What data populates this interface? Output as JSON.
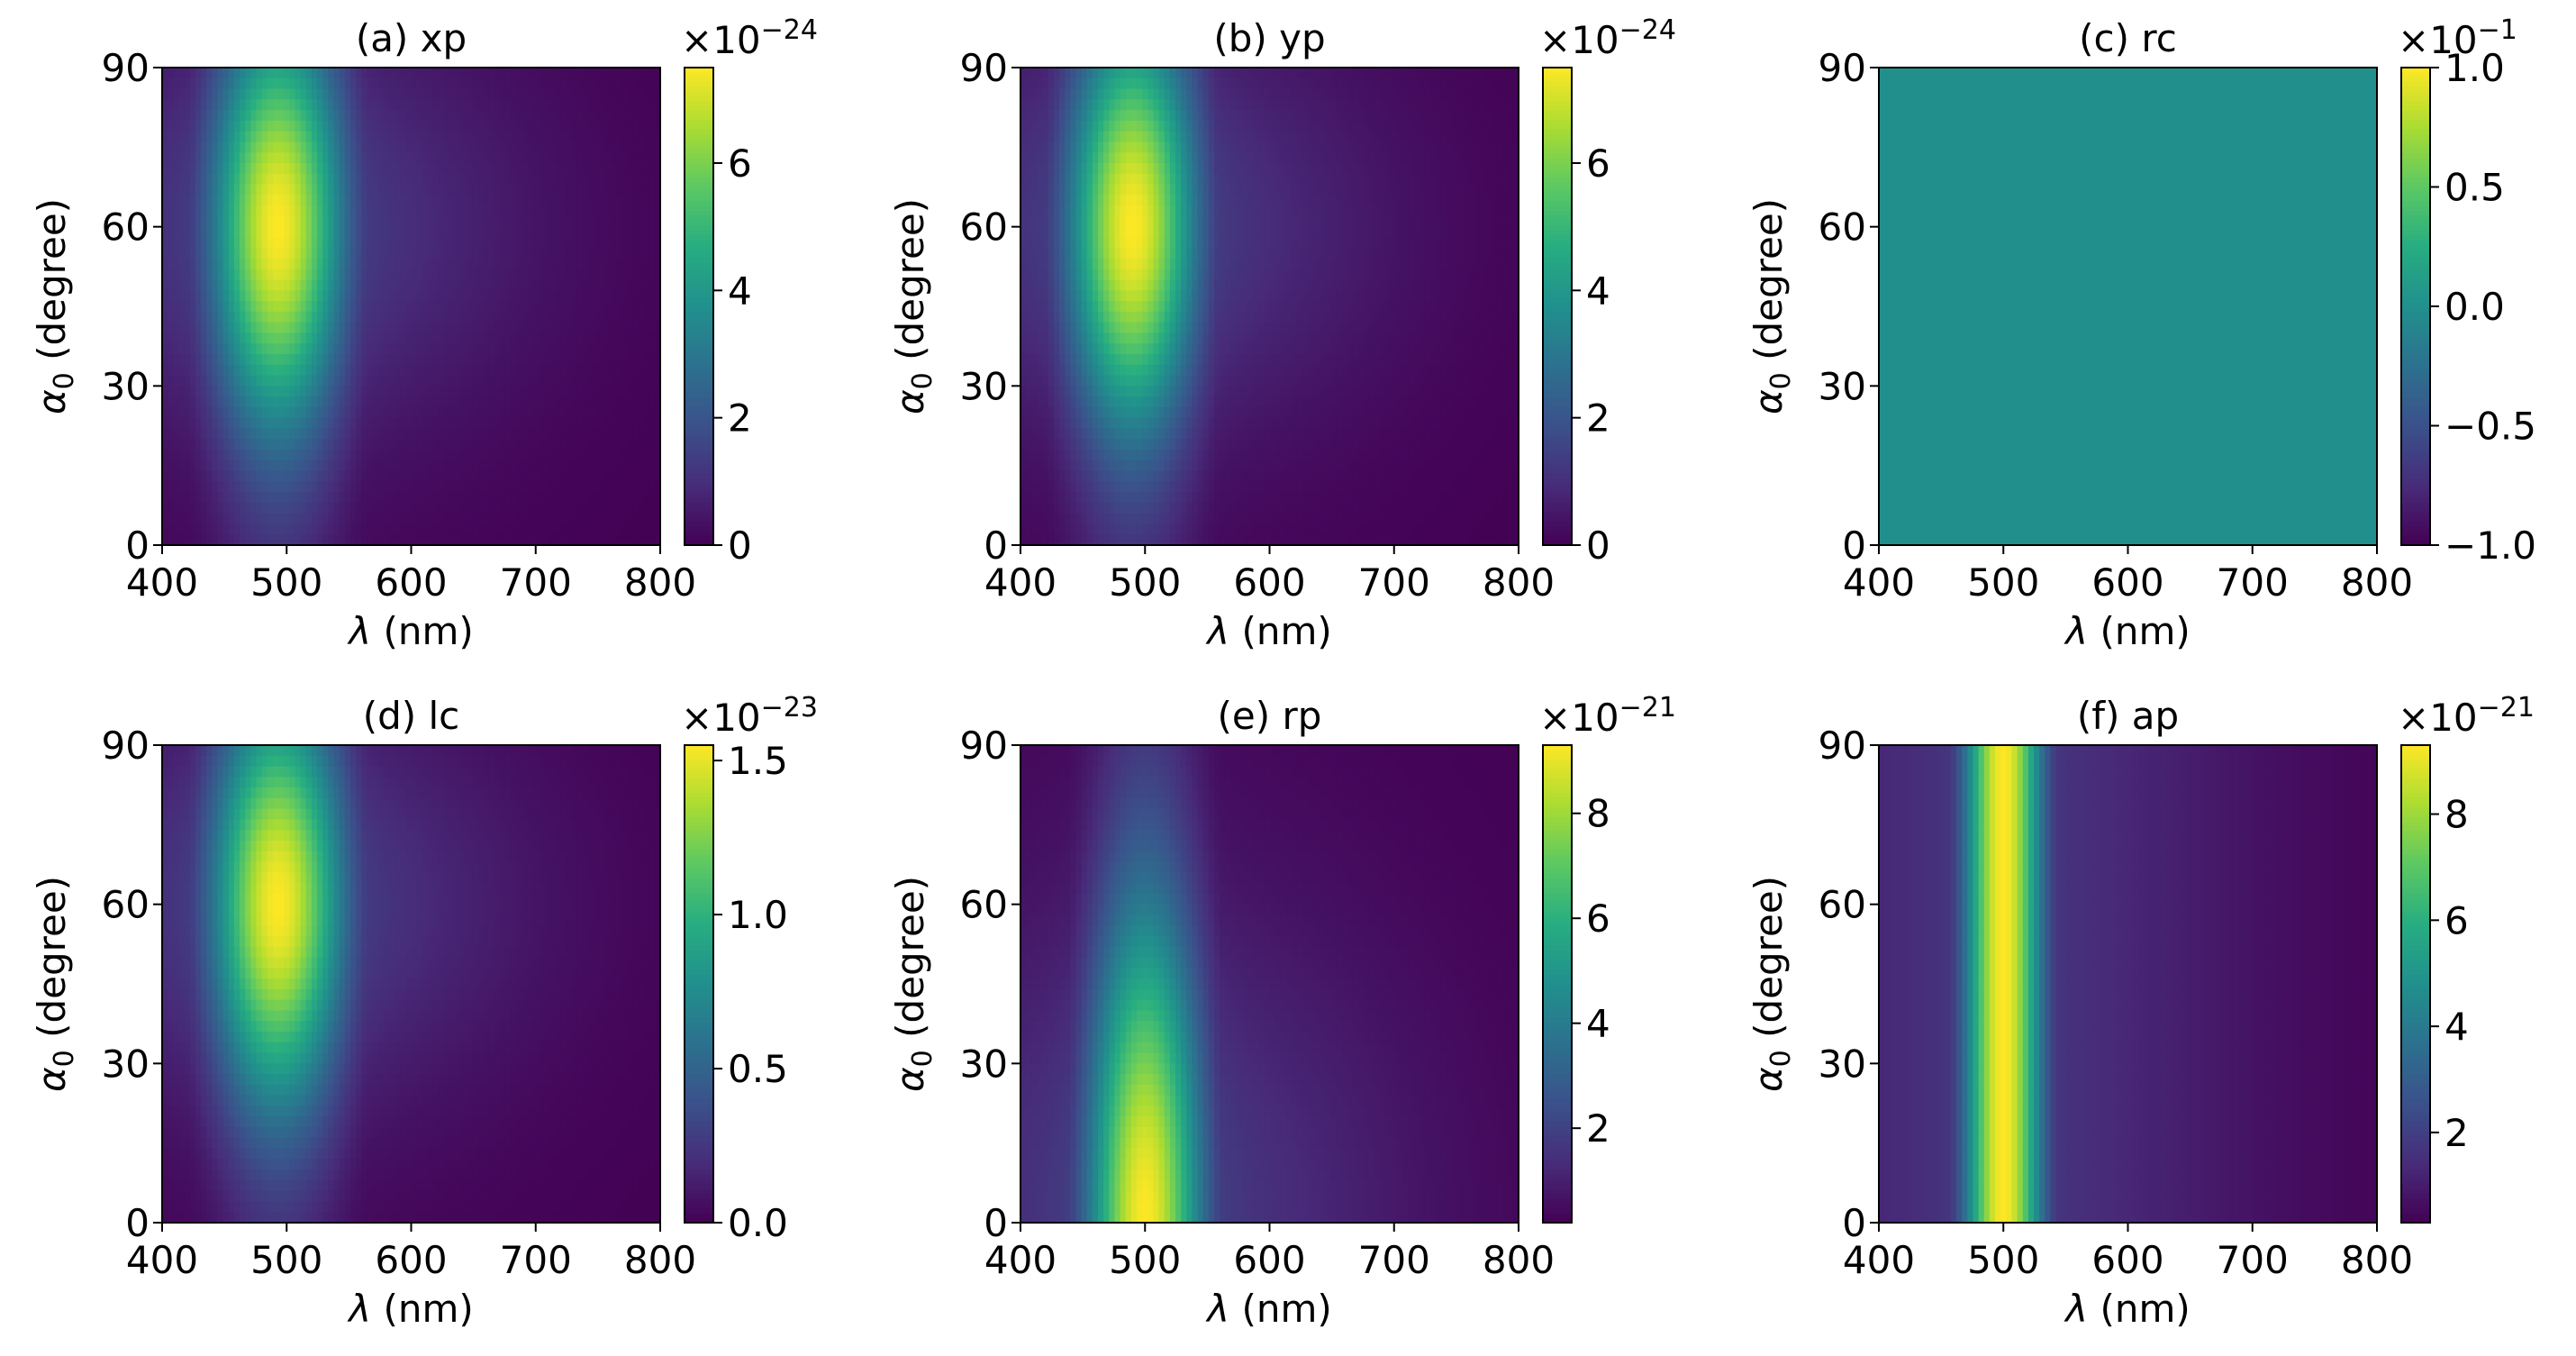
{
  "figure": {
    "rows": 2,
    "cols": 3
  },
  "colormap": "viridis",
  "chart_data": [
    {
      "type": "heatmap",
      "title": "(a) xp",
      "xlabel_symbol": "λ",
      "xlabel_unit": " (nm)",
      "ylabel_symbol": "α",
      "ylabel_sub": "0",
      "ylabel_unit": "  (degree)",
      "xlim": [
        400,
        800
      ],
      "ylim": [
        0,
        90
      ],
      "xticks": [
        400,
        500,
        600,
        700,
        800
      ],
      "yticks": [
        0,
        30,
        60,
        90
      ],
      "field": {
        "kind": "gauss2d",
        "peak_lambda": 493,
        "sigma_lambda": 38,
        "tail_sigma_lambda": 140,
        "tail_amp": 0.2,
        "peak_alpha": 60,
        "sigma_alpha": 27
      },
      "colorbar": {
        "range": [
          0,
          7.5
        ],
        "ticks": [
          0,
          2,
          4,
          6
        ],
        "tick_labels": [
          "0",
          "2",
          "4",
          "6"
        ],
        "offset_mantissa": "×10",
        "offset_exponent": "−24"
      }
    },
    {
      "type": "heatmap",
      "title": "(b) yp",
      "xlabel_symbol": "λ",
      "xlabel_unit": " (nm)",
      "ylabel_symbol": "α",
      "ylabel_sub": "0",
      "ylabel_unit": "  (degree)",
      "xlim": [
        400,
        800
      ],
      "ylim": [
        0,
        90
      ],
      "xticks": [
        400,
        500,
        600,
        700,
        800
      ],
      "yticks": [
        0,
        30,
        60,
        90
      ],
      "field": {
        "kind": "gauss2d",
        "peak_lambda": 490,
        "sigma_lambda": 37,
        "tail_sigma_lambda": 140,
        "tail_amp": 0.2,
        "peak_alpha": 60,
        "sigma_alpha": 27
      },
      "colorbar": {
        "range": [
          0,
          7.5
        ],
        "ticks": [
          0,
          2,
          4,
          6
        ],
        "tick_labels": [
          "0",
          "2",
          "4",
          "6"
        ],
        "offset_mantissa": "×10",
        "offset_exponent": "−24"
      }
    },
    {
      "type": "heatmap",
      "title": "(c) rc",
      "xlabel_symbol": "λ",
      "xlabel_unit": " (nm)",
      "ylabel_symbol": "α",
      "ylabel_sub": "0",
      "ylabel_unit": "  (degree)",
      "xlim": [
        400,
        800
      ],
      "ylim": [
        0,
        90
      ],
      "xticks": [
        400,
        500,
        600,
        700,
        800
      ],
      "yticks": [
        0,
        30,
        60,
        90
      ],
      "field": {
        "kind": "constant",
        "value": 0.0
      },
      "colorbar": {
        "range": [
          -1.0,
          1.0
        ],
        "ticks": [
          -1.0,
          -0.5,
          0.0,
          0.5,
          1.0
        ],
        "tick_labels": [
          "−1.0",
          "−0.5",
          "0.0",
          "0.5",
          "1.0"
        ],
        "offset_mantissa": "×10",
        "offset_exponent": "−1"
      }
    },
    {
      "type": "heatmap",
      "title": "(d) lc",
      "xlabel_symbol": "λ",
      "xlabel_unit": " (nm)",
      "ylabel_symbol": "α",
      "ylabel_sub": "0",
      "ylabel_unit": "  (degree)",
      "xlim": [
        400,
        800
      ],
      "ylim": [
        0,
        90
      ],
      "xticks": [
        400,
        500,
        600,
        700,
        800
      ],
      "yticks": [
        0,
        30,
        60,
        90
      ],
      "field": {
        "kind": "gauss2d",
        "peak_lambda": 493,
        "sigma_lambda": 38,
        "tail_sigma_lambda": 140,
        "tail_amp": 0.2,
        "peak_alpha": 60,
        "sigma_alpha": 27
      },
      "colorbar": {
        "range": [
          0,
          1.55
        ],
        "ticks": [
          0.0,
          0.5,
          1.0,
          1.5
        ],
        "tick_labels": [
          "0.0",
          "0.5",
          "1.0",
          "1.5"
        ],
        "offset_mantissa": "×10",
        "offset_exponent": "−23"
      }
    },
    {
      "type": "heatmap",
      "title": "(e) rp",
      "xlabel_symbol": "λ",
      "xlabel_unit": " (nm)",
      "ylabel_symbol": "α",
      "ylabel_sub": "0",
      "ylabel_unit": "  (degree)",
      "xlim": [
        400,
        800
      ],
      "ylim": [
        0,
        90
      ],
      "xticks": [
        400,
        500,
        600,
        700,
        800
      ],
      "yticks": [
        0,
        30,
        60,
        90
      ],
      "field": {
        "kind": "gauss2d",
        "peak_lambda": 500,
        "sigma_lambda": 33,
        "tail_sigma_lambda": 150,
        "tail_amp": 0.2,
        "peak_alpha": 0,
        "sigma_alpha": 42
      },
      "colorbar": {
        "range": [
          0.2,
          9.3
        ],
        "ticks": [
          2,
          4,
          6,
          8
        ],
        "tick_labels": [
          "2",
          "4",
          "6",
          "8"
        ],
        "offset_mantissa": "×10",
        "offset_exponent": "−21"
      }
    },
    {
      "type": "heatmap",
      "title": "(f) ap",
      "xlabel_symbol": "λ",
      "xlabel_unit": " (nm)",
      "ylabel_symbol": "α",
      "ylabel_sub": "0",
      "ylabel_unit": "  (degree)",
      "xlim": [
        400,
        800
      ],
      "ylim": [
        0,
        90
      ],
      "xticks": [
        400,
        500,
        600,
        700,
        800
      ],
      "yticks": [
        0,
        30,
        60,
        90
      ],
      "field": {
        "kind": "band",
        "peak_lambda": 500,
        "sigma_lambda": 22,
        "tail_sigma_lambda": 140,
        "tail_amp": 0.17
      },
      "colorbar": {
        "range": [
          0.3,
          9.3
        ],
        "ticks": [
          2,
          4,
          6,
          8
        ],
        "tick_labels": [
          "2",
          "4",
          "6",
          "8"
        ],
        "offset_mantissa": "×10",
        "offset_exponent": "−21"
      }
    }
  ]
}
